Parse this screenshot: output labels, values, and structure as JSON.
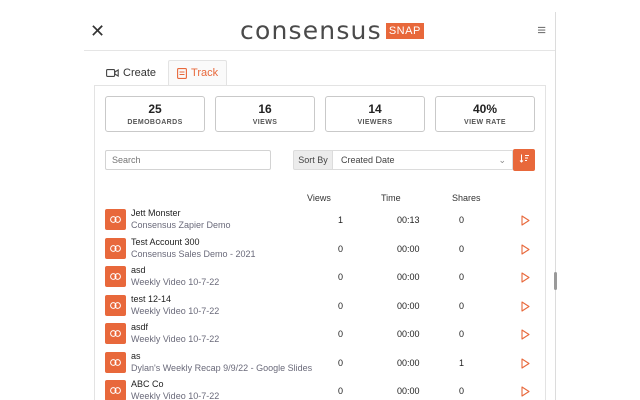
{
  "header": {
    "close_glyph": "✕",
    "logo_text": "consensus",
    "logo_badge": "SNAP",
    "menu_glyph": "≡"
  },
  "tabs": [
    {
      "label": "Create",
      "icon": "video-camera-icon",
      "active": false
    },
    {
      "label": "Track",
      "icon": "report-icon",
      "active": true
    }
  ],
  "stats": [
    {
      "value": "25",
      "label": "DEMOBOARDS"
    },
    {
      "value": "16",
      "label": "VIEWS"
    },
    {
      "value": "14",
      "label": "VIEWERS"
    },
    {
      "value": "40%",
      "label": "VIEW RATE"
    }
  ],
  "search": {
    "placeholder": "Search",
    "value": ""
  },
  "sort": {
    "label": "Sort By",
    "selected": "Created Date",
    "chevron_glyph": "⌄"
  },
  "columns": {
    "views": "Views",
    "time": "Time",
    "shares": "Shares"
  },
  "rows": [
    {
      "name": "Jett Monster",
      "sub": "Consensus Zapier Demo",
      "views": "1",
      "time": "00:13",
      "shares": "0"
    },
    {
      "name": "Test Account 300",
      "sub": "Consensus Sales Demo - 2021",
      "views": "0",
      "time": "00:00",
      "shares": "0"
    },
    {
      "name": "asd",
      "sub": "Weekly Video 10-7-22",
      "views": "0",
      "time": "00:00",
      "shares": "0"
    },
    {
      "name": "test 12-14",
      "sub": "Weekly Video 10-7-22",
      "views": "0",
      "time": "00:00",
      "shares": "0"
    },
    {
      "name": "asdf",
      "sub": "Weekly Video 10-7-22",
      "views": "0",
      "time": "00:00",
      "shares": "0"
    },
    {
      "name": "as",
      "sub": "Dylan's Weekly Recap 9/9/22 - Google Slides",
      "views": "0",
      "time": "00:00",
      "shares": "1"
    },
    {
      "name": "ABC Co",
      "sub": "Weekly Video 10-7-22",
      "views": "0",
      "time": "00:00",
      "shares": "0"
    }
  ],
  "colors": {
    "accent": "#e8683b",
    "text": "#222222",
    "subtext": "#6a6a7a",
    "border": "#c9c9c9"
  }
}
